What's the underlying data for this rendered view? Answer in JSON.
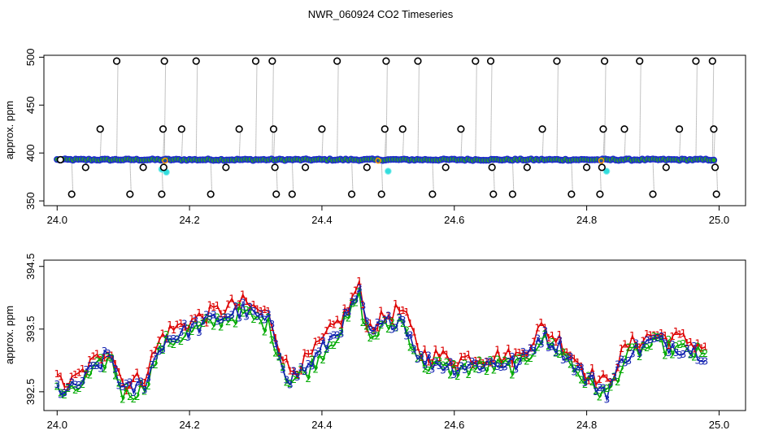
{
  "title": "NWR_060924  CO2 Timeseries",
  "chart_data": [
    {
      "type": "scatter",
      "ylabel": "approx. ppm",
      "xlim": [
        23.98,
        25.04
      ],
      "ylim": [
        345,
        502
      ],
      "xticks": [
        "24.0",
        "24.2",
        "24.4",
        "24.6",
        "24.8",
        "25.0"
      ],
      "xtick_values": [
        24.0,
        24.2,
        24.4,
        24.6,
        24.8,
        25.0
      ],
      "yticks": [
        "350",
        "400",
        "450",
        "500"
      ],
      "ytick_values": [
        350,
        400,
        450,
        500
      ],
      "baseline_ppm": 393,
      "colors": {
        "baseline_points": "#1f2ccc",
        "baseline_inner": "#22aa22",
        "outliers": "#000000",
        "spikes": "#888888",
        "cyan": "#33dddd",
        "orange": "#ff9900"
      },
      "outlier_points": [
        {
          "x": 24.005,
          "y": 393
        },
        {
          "x": 24.022,
          "y": 357
        },
        {
          "x": 24.043,
          "y": 385
        },
        {
          "x": 24.065,
          "y": 425
        },
        {
          "x": 24.09,
          "y": 496
        },
        {
          "x": 24.11,
          "y": 357
        },
        {
          "x": 24.13,
          "y": 385
        },
        {
          "x": 24.158,
          "y": 357
        },
        {
          "x": 24.16,
          "y": 425
        },
        {
          "x": 24.161,
          "y": 385
        },
        {
          "x": 24.162,
          "y": 496
        },
        {
          "x": 24.188,
          "y": 425
        },
        {
          "x": 24.21,
          "y": 496
        },
        {
          "x": 24.232,
          "y": 357
        },
        {
          "x": 24.255,
          "y": 385
        },
        {
          "x": 24.275,
          "y": 425
        },
        {
          "x": 24.3,
          "y": 496
        },
        {
          "x": 24.325,
          "y": 496
        },
        {
          "x": 24.327,
          "y": 425
        },
        {
          "x": 24.329,
          "y": 385
        },
        {
          "x": 24.331,
          "y": 357
        },
        {
          "x": 24.355,
          "y": 357
        },
        {
          "x": 24.375,
          "y": 385
        },
        {
          "x": 24.4,
          "y": 425
        },
        {
          "x": 24.423,
          "y": 496
        },
        {
          "x": 24.445,
          "y": 357
        },
        {
          "x": 24.468,
          "y": 385
        },
        {
          "x": 24.49,
          "y": 357
        },
        {
          "x": 24.495,
          "y": 425
        },
        {
          "x": 24.497,
          "y": 496
        },
        {
          "x": 24.522,
          "y": 425
        },
        {
          "x": 24.545,
          "y": 496
        },
        {
          "x": 24.567,
          "y": 357
        },
        {
          "x": 24.587,
          "y": 385
        },
        {
          "x": 24.61,
          "y": 425
        },
        {
          "x": 24.632,
          "y": 496
        },
        {
          "x": 24.655,
          "y": 496
        },
        {
          "x": 24.657,
          "y": 385
        },
        {
          "x": 24.659,
          "y": 357
        },
        {
          "x": 24.688,
          "y": 357
        },
        {
          "x": 24.71,
          "y": 385
        },
        {
          "x": 24.733,
          "y": 425
        },
        {
          "x": 24.755,
          "y": 496
        },
        {
          "x": 24.777,
          "y": 357
        },
        {
          "x": 24.8,
          "y": 385
        },
        {
          "x": 24.82,
          "y": 357
        },
        {
          "x": 24.823,
          "y": 385
        },
        {
          "x": 24.825,
          "y": 425
        },
        {
          "x": 24.827,
          "y": 496
        },
        {
          "x": 24.857,
          "y": 425
        },
        {
          "x": 24.88,
          "y": 496
        },
        {
          "x": 24.9,
          "y": 357
        },
        {
          "x": 24.92,
          "y": 385
        },
        {
          "x": 24.94,
          "y": 425
        },
        {
          "x": 24.965,
          "y": 496
        },
        {
          "x": 24.99,
          "y": 496
        },
        {
          "x": 24.992,
          "y": 425
        },
        {
          "x": 24.994,
          "y": 385
        },
        {
          "x": 24.996,
          "y": 357
        }
      ],
      "cyan_points": [
        {
          "x": 24.158,
          "y": 383
        },
        {
          "x": 24.165,
          "y": 380
        },
        {
          "x": 24.5,
          "y": 381
        },
        {
          "x": 24.83,
          "y": 381
        }
      ],
      "orange_points": [
        {
          "x": 24.163,
          "y": 392
        },
        {
          "x": 24.485,
          "y": 392
        },
        {
          "x": 24.822,
          "y": 392
        }
      ]
    },
    {
      "type": "line",
      "ylabel": "approx. ppm",
      "xlim": [
        23.98,
        25.04
      ],
      "ylim": [
        392.2,
        394.6
      ],
      "xticks": [
        "24.0",
        "24.2",
        "24.4",
        "24.6",
        "24.8",
        "25.0"
      ],
      "xtick_values": [
        24.0,
        24.2,
        24.4,
        24.6,
        24.8,
        25.0
      ],
      "yticks": [
        "392.5",
        "393.5",
        "394.5"
      ],
      "ytick_values": [
        392.5,
        393.5,
        394.5
      ],
      "anchors_x": [
        24.0,
        24.02,
        24.05,
        24.08,
        24.1,
        24.13,
        24.16,
        24.2,
        24.25,
        24.28,
        24.32,
        24.35,
        24.38,
        24.41,
        24.44,
        24.455,
        24.47,
        24.5,
        24.52,
        24.55,
        24.6,
        24.65,
        24.7,
        24.73,
        24.76,
        24.8,
        24.83,
        24.86,
        24.9,
        24.95,
        24.98
      ],
      "anchors_y": [
        392.55,
        392.5,
        392.8,
        393.1,
        392.5,
        392.6,
        393.3,
        393.5,
        393.7,
        393.8,
        393.6,
        392.7,
        392.9,
        393.3,
        393.7,
        394.1,
        393.4,
        393.6,
        393.7,
        393.0,
        392.9,
        392.95,
        392.95,
        393.4,
        393.2,
        392.7,
        392.5,
        393.1,
        393.3,
        393.2,
        393.1
      ],
      "series": [
        {
          "name": "1",
          "color": "#dd0000",
          "offset": 0.12
        },
        {
          "name": "2",
          "color": "#00aa00",
          "offset": -0.05
        },
        {
          "name": "3",
          "color": "#1020b0",
          "offset": 0.0
        }
      ]
    }
  ]
}
